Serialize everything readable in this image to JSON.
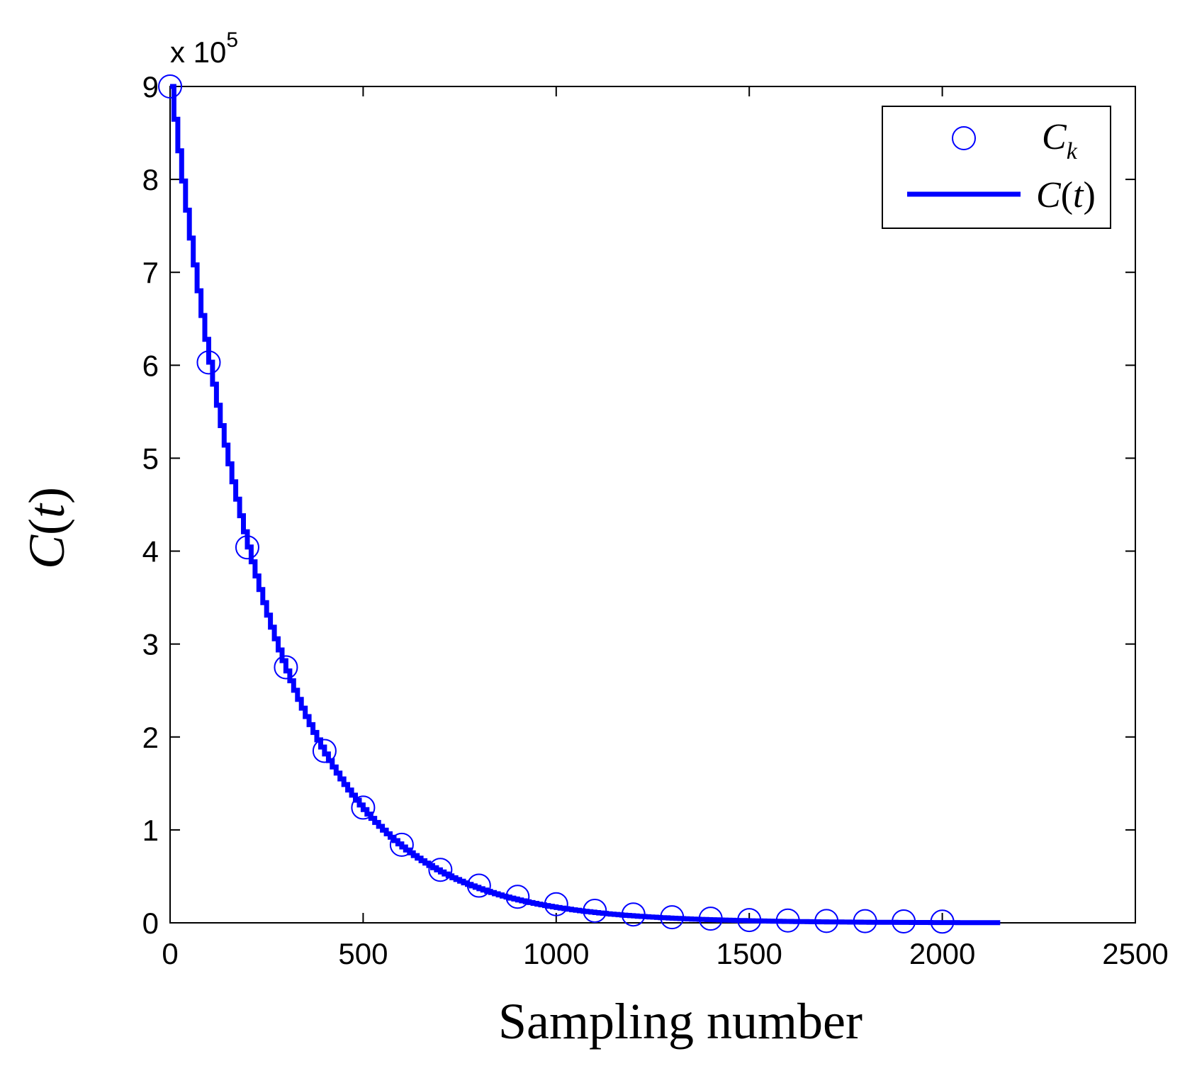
{
  "chart_data": {
    "type": "line",
    "title": "",
    "xlabel": "Sampling number",
    "ylabel_parts": {
      "main": "C",
      "open": "(",
      "var": "t",
      "close": ")"
    },
    "multiplier": {
      "prefix": "x 10",
      "exponent": "5"
    },
    "xlim": [
      0,
      2500
    ],
    "ylim": [
      0,
      900000
    ],
    "x_ticks": [
      0,
      500,
      1000,
      1500,
      2000,
      2500
    ],
    "x_tick_labels": [
      "0",
      "500",
      "1000",
      "1500",
      "2000",
      "2500"
    ],
    "y_ticks": [
      0,
      100000,
      200000,
      300000,
      400000,
      500000,
      600000,
      700000,
      800000,
      900000
    ],
    "y_tick_labels": [
      "0",
      "1",
      "2",
      "3",
      "4",
      "5",
      "6",
      "7",
      "8",
      "9"
    ],
    "grid": false,
    "legend_position": "top-right",
    "series": [
      {
        "name": "C_k",
        "legend_main": "C",
        "legend_sub": "k",
        "style": "markers-circle",
        "color": "#0000ff",
        "x": [
          0,
          100,
          200,
          300,
          400,
          500,
          600,
          700,
          800,
          900,
          1000,
          1100,
          1200,
          1300,
          1400,
          1500,
          1600,
          1700,
          1800,
          1900,
          2000
        ],
        "y": [
          900000,
          603000,
          404000,
          275000,
          185000,
          124000,
          84000,
          57000,
          40000,
          28000,
          20000,
          13000,
          9000,
          6000,
          4500,
          3000,
          2500,
          2000,
          1800,
          1500,
          1300
        ]
      },
      {
        "name": "C(t)",
        "legend_main": "C",
        "legend_open": "(",
        "legend_var": "t",
        "legend_close": ")",
        "style": "line",
        "color": "#0000ff",
        "decay_rate_per_sample": 0.004,
        "x_end": 2150,
        "step_interval": 10
      }
    ]
  }
}
